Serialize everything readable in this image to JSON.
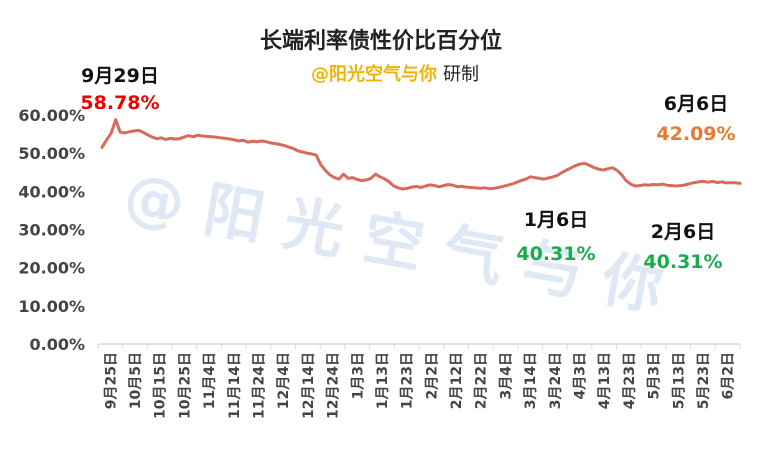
{
  "chart_data": {
    "type": "line",
    "title": "长端利率债性价比百分位",
    "subtitle_brand": "@阳光空气与你",
    "subtitle_suffix": "研制",
    "watermark": "@ 阳 光 空 气 与 你",
    "xlabel": "",
    "ylabel": "",
    "ylim": [
      0,
      60
    ],
    "y_ticks": [
      "0.00%",
      "10.00%",
      "20.00%",
      "30.00%",
      "40.00%",
      "50.00%",
      "60.00%"
    ],
    "y_tick_values": [
      0,
      10,
      20,
      30,
      40,
      50,
      60
    ],
    "x_tick_labels": [
      "9月25日",
      "10月5日",
      "10月15日",
      "10月25日",
      "11月4日",
      "11月14日",
      "11月24日",
      "12月4日",
      "12月14日",
      "12月24日",
      "1月3日",
      "1月13日",
      "1月23日",
      "2月2日",
      "2月12日",
      "2月22日",
      "3月4日",
      "3月14日",
      "3月24日",
      "4月3日",
      "4月13日",
      "4月23日",
      "5月3日",
      "5月13日",
      "5月23日",
      "6月2日"
    ],
    "series": [
      {
        "color": "#d9695a",
        "values": [
          51.5,
          53.5,
          55.2,
          58.78,
          55.5,
          55.3,
          55.6,
          55.8,
          56.0,
          55.5,
          54.8,
          54.2,
          53.8,
          54.0,
          53.6,
          53.9,
          53.7,
          53.8,
          54.2,
          54.6,
          54.3,
          54.7,
          54.5,
          54.4,
          54.3,
          54.2,
          54.0,
          53.9,
          53.7,
          53.5,
          53.2,
          53.4,
          52.9,
          53.1,
          53.0,
          53.2,
          53.0,
          52.7,
          52.5,
          52.3,
          52.0,
          51.6,
          51.2,
          50.6,
          50.3,
          50.0,
          49.8,
          49.5,
          47.0,
          45.5,
          44.3,
          43.6,
          43.2,
          44.5,
          43.4,
          43.6,
          43.1,
          42.8,
          43.0,
          43.4,
          44.5,
          43.8,
          43.3,
          42.5,
          41.4,
          40.9,
          40.6,
          40.8,
          41.1,
          41.3,
          41.0,
          41.4,
          41.7,
          41.5,
          41.2,
          41.5,
          41.8,
          41.6,
          41.2,
          41.3,
          41.1,
          41.0,
          40.9,
          40.8,
          40.9,
          40.7,
          40.8,
          41.0,
          41.3,
          41.6,
          41.9,
          42.4,
          42.8,
          43.2,
          43.8,
          43.6,
          43.4,
          43.2,
          43.5,
          43.8,
          44.2,
          45.0,
          45.6,
          46.2,
          46.8,
          47.2,
          47.3,
          46.8,
          46.2,
          45.8,
          45.6,
          45.9,
          46.2,
          45.5,
          44.4,
          42.8,
          41.9,
          41.4,
          41.5,
          41.7,
          41.6,
          41.8,
          41.7,
          41.9,
          41.6,
          41.5,
          41.4,
          41.5,
          41.7,
          42.0,
          42.3,
          42.5,
          42.6,
          42.4,
          42.6,
          42.3,
          42.5,
          42.2,
          42.3,
          42.2,
          42.09
        ]
      }
    ],
    "annotations": [
      {
        "date": "9月29日",
        "value": "58.78%",
        "color": "#ee0000"
      },
      {
        "date": "1月6日",
        "value": "40.31%",
        "color": "#1aab4c"
      },
      {
        "date": "2月6日",
        "value": "40.31%",
        "color": "#1aab4c"
      },
      {
        "date": "6月6日",
        "value": "42.09%",
        "color": "#e77a2f"
      }
    ],
    "colors": {
      "line": "#d9695a",
      "grid": "#d9d9d9",
      "title": "#222222",
      "brand": "#f0b400",
      "watermark": "#dfe9f5",
      "axis_text": "#444444"
    },
    "grid": false,
    "legend": "none"
  }
}
